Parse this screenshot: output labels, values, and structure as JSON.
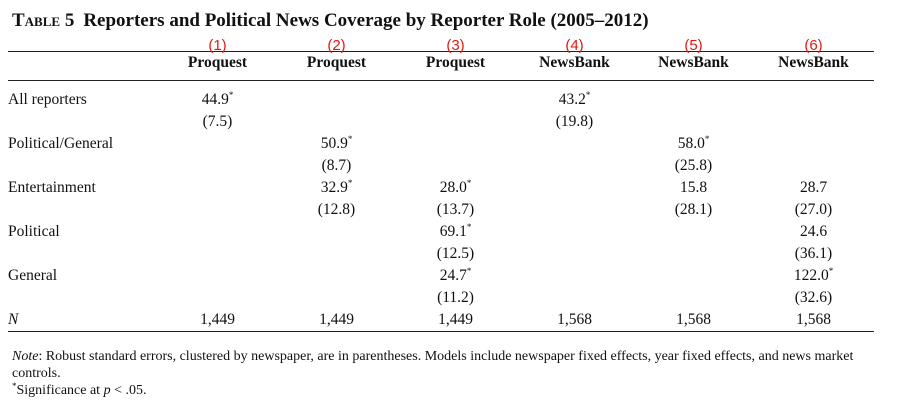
{
  "table": {
    "number": "Table 5",
    "title": "Reporters and Political News Coverage by Reporter Role (2005–2012)",
    "column_numbers": [
      "(1)",
      "(2)",
      "(3)",
      "(4)",
      "(5)",
      "(6)"
    ],
    "column_sources": [
      "Proquest",
      "Proquest",
      "Proquest",
      "NewsBank",
      "NewsBank",
      "NewsBank"
    ],
    "rows": [
      {
        "label": "All reporters",
        "coefficients": [
          "44.9",
          "",
          "",
          "43.2",
          "",
          ""
        ],
        "stars": [
          "*",
          "",
          "",
          "*",
          "",
          ""
        ],
        "std_errors": [
          "(7.5)",
          "",
          "",
          "(19.8)",
          "",
          ""
        ]
      },
      {
        "label": "Political/General",
        "coefficients": [
          "",
          "50.9",
          "",
          "",
          "58.0",
          ""
        ],
        "stars": [
          "",
          "*",
          "",
          "",
          "*",
          ""
        ],
        "std_errors": [
          "",
          "(8.7)",
          "",
          "",
          "(25.8)",
          ""
        ]
      },
      {
        "label": "Entertainment",
        "coefficients": [
          "",
          "32.9",
          "28.0",
          "",
          "15.8",
          "28.7"
        ],
        "stars": [
          "",
          "*",
          "*",
          "",
          "",
          ""
        ],
        "std_errors": [
          "",
          "(12.8)",
          "(13.7)",
          "",
          "(28.1)",
          "(27.0)"
        ]
      },
      {
        "label": "Political",
        "coefficients": [
          "",
          "",
          "69.1",
          "",
          "",
          "24.6"
        ],
        "stars": [
          "",
          "",
          "*",
          "",
          "",
          ""
        ],
        "std_errors": [
          "",
          "",
          "(12.5)",
          "",
          "",
          "(36.1)"
        ]
      },
      {
        "label": "General",
        "coefficients": [
          "",
          "",
          "24.7",
          "",
          "",
          "122.0"
        ],
        "stars": [
          "",
          "",
          "*",
          "",
          "",
          "*"
        ],
        "std_errors": [
          "",
          "",
          "(11.2)",
          "",
          "",
          "(32.6)"
        ]
      }
    ],
    "n_row": {
      "label": "N",
      "values": [
        "1,449",
        "1,449",
        "1,449",
        "1,568",
        "1,568",
        "1,568"
      ]
    }
  },
  "notes": {
    "note_label": "Note",
    "note_text": ": Robust standard errors, clustered by newspaper, are in parentheses. Models include newspaper fixed effects, year fixed effects, and news market controls.",
    "significance_star": "*",
    "significance_text_before": "Significance at ",
    "significance_p": "p",
    "significance_text_after": " < .05."
  }
}
